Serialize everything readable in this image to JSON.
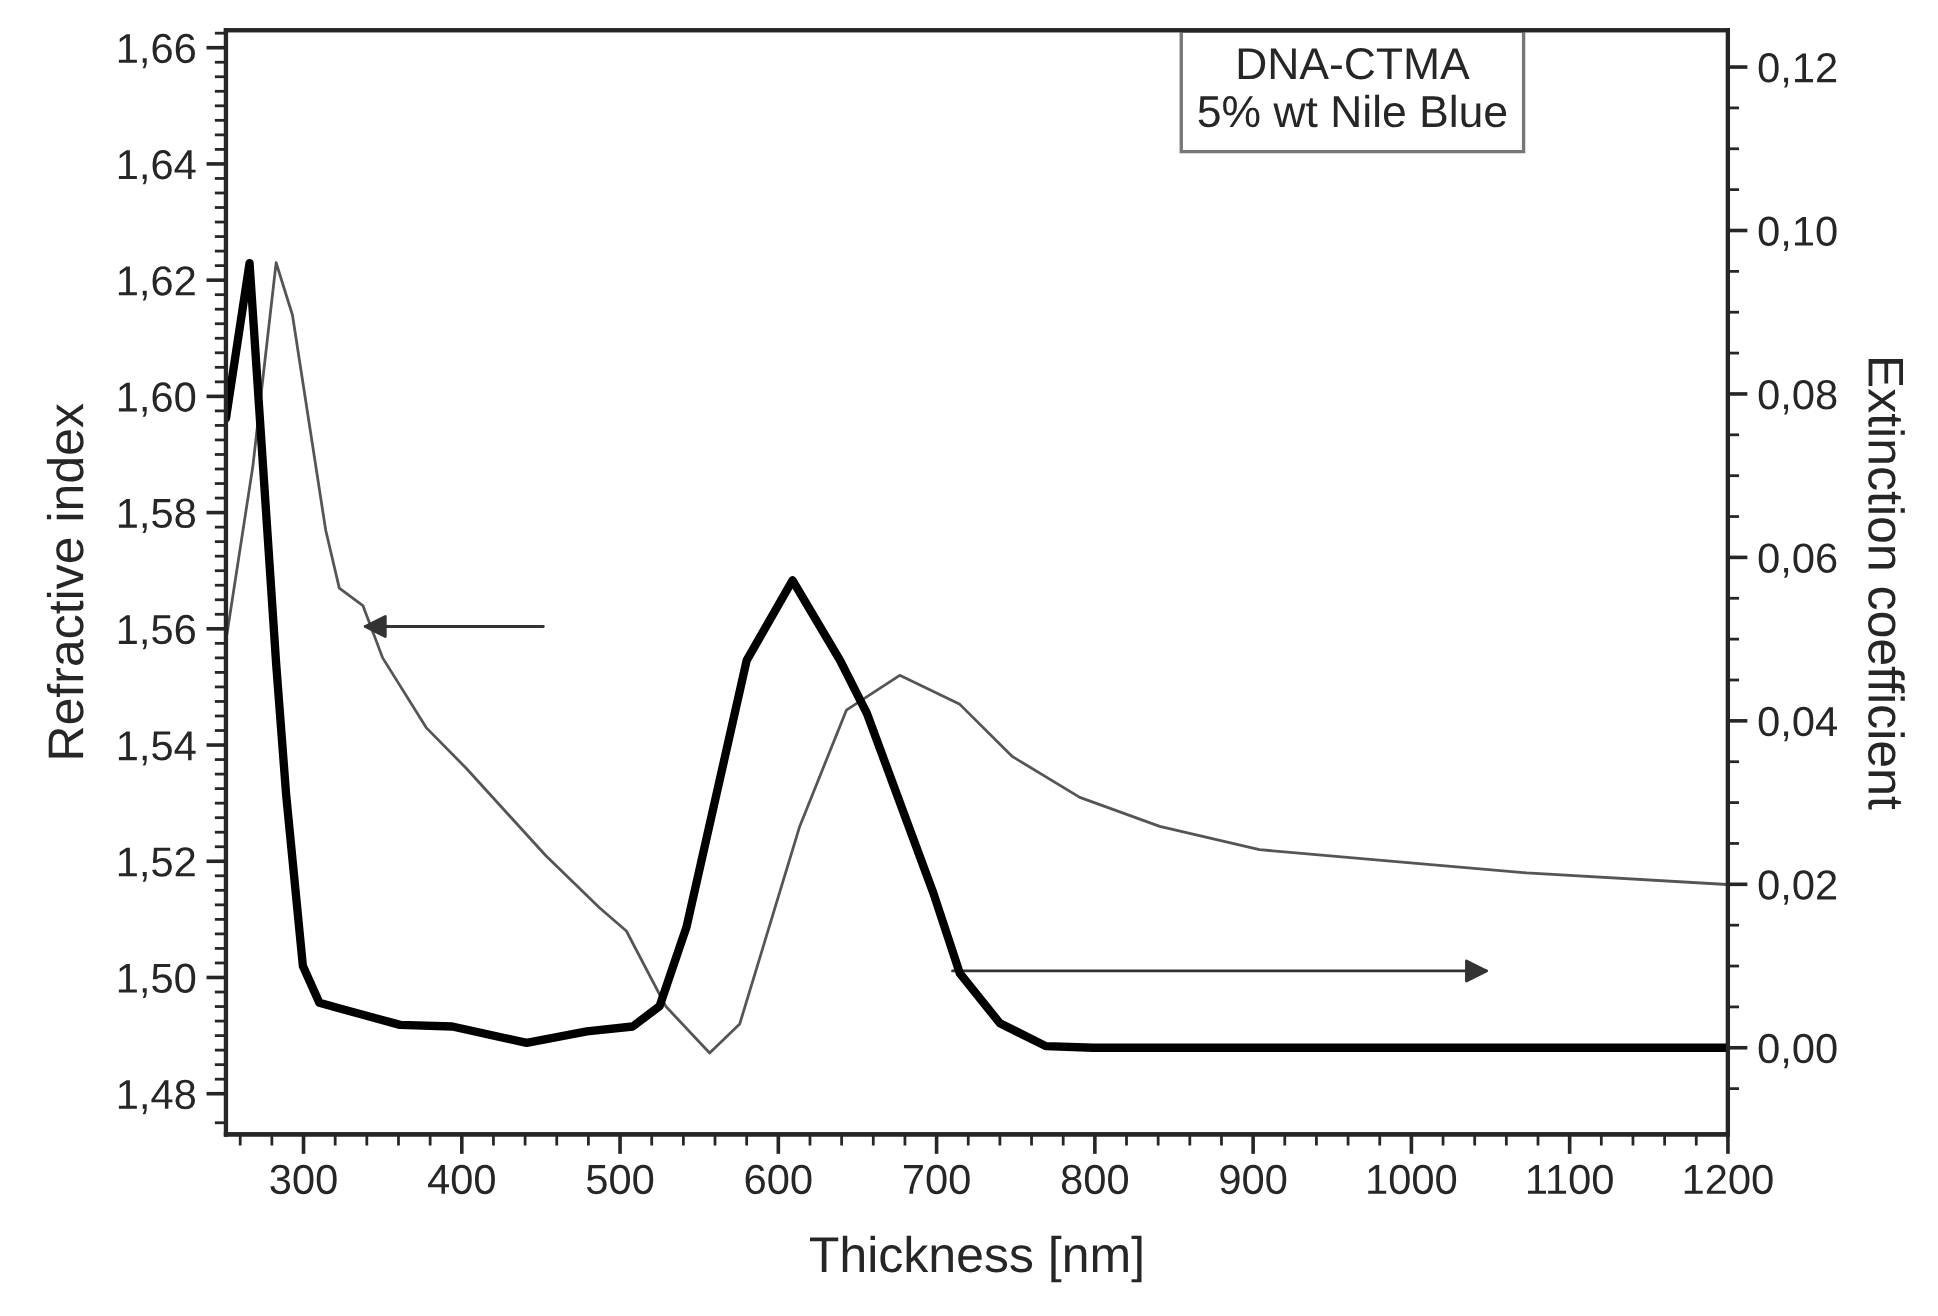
{
  "chart_data": {
    "type": "line",
    "xlabel": "Thickness [nm]",
    "ylabel": "Refractive index",
    "y2label": "Extinction coefficient",
    "annotations": [
      "DNA-CTMA\n5% wt Nile Blue"
    ],
    "xlim": [
      251,
      1200
    ],
    "ylim": [
      1.473,
      1.663
    ],
    "y2lim": [
      -0.0106,
      0.1245
    ],
    "xticks": [
      {
        "value": 260,
        "label": null
      },
      {
        "value": 280,
        "label": null
      },
      300,
      {
        "value": 320,
        "label": null
      },
      {
        "value": 340,
        "label": null
      },
      {
        "value": 360,
        "label": null
      },
      {
        "value": 380,
        "label": null
      },
      400,
      {
        "value": 420,
        "label": null
      },
      {
        "value": 440,
        "label": null
      },
      {
        "value": 460,
        "label": null
      },
      {
        "value": 480,
        "label": null
      },
      500,
      {
        "value": 520,
        "label": null
      },
      {
        "value": 540,
        "label": null
      },
      {
        "value": 560,
        "label": null
      },
      {
        "value": 580,
        "label": null
      },
      600,
      {
        "value": 620,
        "label": null
      },
      {
        "value": 640,
        "label": null
      },
      {
        "value": 660,
        "label": null
      },
      {
        "value": 680,
        "label": null
      },
      700,
      {
        "value": 720,
        "label": null
      },
      {
        "value": 740,
        "label": null
      },
      {
        "value": 760,
        "label": null
      },
      {
        "value": 780,
        "label": null
      },
      800,
      {
        "value": 820,
        "label": null
      },
      {
        "value": 840,
        "label": null
      },
      {
        "value": 860,
        "label": null
      },
      {
        "value": 880,
        "label": null
      },
      900,
      {
        "value": 920,
        "label": null
      },
      {
        "value": 940,
        "label": null
      },
      {
        "value": 960,
        "label": null
      },
      {
        "value": 980,
        "label": null
      },
      1000,
      {
        "value": 1020,
        "label": null
      },
      {
        "value": 1040,
        "label": null
      },
      {
        "value": 1060,
        "label": null
      },
      {
        "value": 1080,
        "label": null
      },
      1100,
      {
        "value": 1120,
        "label": null
      },
      {
        "value": 1140,
        "label": null
      },
      {
        "value": 1160,
        "label": null
      },
      {
        "value": 1180,
        "label": null
      },
      1200
    ],
    "yticks": [
      {
        "value": 1.48,
        "label": "1,48"
      },
      {
        "value": 1.5,
        "label": "1,50"
      },
      {
        "value": 1.52,
        "label": "1,52"
      },
      {
        "value": 1.54,
        "label": "1,54"
      },
      {
        "value": 1.56,
        "label": "1,56"
      },
      {
        "value": 1.58,
        "label": "1,58"
      },
      {
        "value": 1.6,
        "label": "1,60"
      },
      {
        "value": 1.62,
        "label": "1,62"
      },
      {
        "value": 1.64,
        "label": "1,64"
      },
      {
        "value": 1.66,
        "label": "1,66"
      },
      {
        "value": 1.475,
        "label": null
      },
      {
        "value": 1.4825,
        "label": null
      },
      {
        "value": 1.485,
        "label": null
      },
      {
        "value": 1.4875,
        "label": null
      },
      {
        "value": 1.49,
        "label": null
      },
      {
        "value": 1.4925,
        "label": null
      },
      {
        "value": 1.495,
        "label": null
      },
      {
        "value": 1.4975,
        "label": null
      },
      {
        "value": 1.5025,
        "label": null
      },
      {
        "value": 1.505,
        "label": null
      },
      {
        "value": 1.5075,
        "label": null
      },
      {
        "value": 1.51,
        "label": null
      },
      {
        "value": 1.5125,
        "label": null
      },
      {
        "value": 1.515,
        "label": null
      },
      {
        "value": 1.5175,
        "label": null
      },
      {
        "value": 1.5225,
        "label": null
      },
      {
        "value": 1.525,
        "label": null
      },
      {
        "value": 1.5275,
        "label": null
      },
      {
        "value": 1.53,
        "label": null
      },
      {
        "value": 1.5325,
        "label": null
      },
      {
        "value": 1.535,
        "label": null
      },
      {
        "value": 1.5375,
        "label": null
      },
      {
        "value": 1.5425,
        "label": null
      },
      {
        "value": 1.545,
        "label": null
      },
      {
        "value": 1.5475,
        "label": null
      },
      {
        "value": 1.55,
        "label": null
      },
      {
        "value": 1.5525,
        "label": null
      },
      {
        "value": 1.555,
        "label": null
      },
      {
        "value": 1.5575,
        "label": null
      },
      {
        "value": 1.5625,
        "label": null
      },
      {
        "value": 1.565,
        "label": null
      },
      {
        "value": 1.5675,
        "label": null
      },
      {
        "value": 1.57,
        "label": null
      },
      {
        "value": 1.5725,
        "label": null
      },
      {
        "value": 1.575,
        "label": null
      },
      {
        "value": 1.5775,
        "label": null
      },
      {
        "value": 1.5825,
        "label": null
      },
      {
        "value": 1.585,
        "label": null
      },
      {
        "value": 1.5875,
        "label": null
      },
      {
        "value": 1.59,
        "label": null
      },
      {
        "value": 1.5925,
        "label": null
      },
      {
        "value": 1.595,
        "label": null
      },
      {
        "value": 1.5975,
        "label": null
      },
      {
        "value": 1.6025,
        "label": null
      },
      {
        "value": 1.605,
        "label": null
      },
      {
        "value": 1.6075,
        "label": null
      },
      {
        "value": 1.61,
        "label": null
      },
      {
        "value": 1.6125,
        "label": null
      },
      {
        "value": 1.615,
        "label": null
      },
      {
        "value": 1.6175,
        "label": null
      },
      {
        "value": 1.6225,
        "label": null
      },
      {
        "value": 1.625,
        "label": null
      },
      {
        "value": 1.6275,
        "label": null
      },
      {
        "value": 1.63,
        "label": null
      },
      {
        "value": 1.6325,
        "label": null
      },
      {
        "value": 1.635,
        "label": null
      },
      {
        "value": 1.6375,
        "label": null
      },
      {
        "value": 1.6425,
        "label": null
      },
      {
        "value": 1.645,
        "label": null
      },
      {
        "value": 1.6475,
        "label": null
      },
      {
        "value": 1.65,
        "label": null
      },
      {
        "value": 1.6525,
        "label": null
      },
      {
        "value": 1.655,
        "label": null
      },
      {
        "value": 1.6575,
        "label": null
      },
      {
        "value": 1.6625,
        "label": null
      }
    ],
    "y2ticks": [
      {
        "value": 0.0,
        "label": "0,00"
      },
      {
        "value": 0.02,
        "label": "0,02"
      },
      {
        "value": 0.04,
        "label": "0,04"
      },
      {
        "value": 0.06,
        "label": "0,06"
      },
      {
        "value": 0.08,
        "label": "0,08"
      },
      {
        "value": 0.1,
        "label": "0,10"
      },
      {
        "value": 0.12,
        "label": "0,12"
      },
      {
        "value": -0.005,
        "label": null
      },
      {
        "value": 0.005,
        "label": null
      },
      {
        "value": 0.01,
        "label": null
      },
      {
        "value": 0.015,
        "label": null
      },
      {
        "value": 0.025,
        "label": null
      },
      {
        "value": 0.03,
        "label": null
      },
      {
        "value": 0.035,
        "label": null
      },
      {
        "value": 0.045,
        "label": null
      },
      {
        "value": 0.05,
        "label": null
      },
      {
        "value": 0.055,
        "label": null
      },
      {
        "value": 0.065,
        "label": null
      },
      {
        "value": 0.07,
        "label": null
      },
      {
        "value": 0.075,
        "label": null
      },
      {
        "value": 0.085,
        "label": null
      },
      {
        "value": 0.09,
        "label": null
      },
      {
        "value": 0.095,
        "label": null
      },
      {
        "value": 0.105,
        "label": null
      },
      {
        "value": 0.11,
        "label": null
      },
      {
        "value": 0.115,
        "label": null
      }
    ],
    "grid": false,
    "line_style": "solid",
    "series": [
      {
        "color": "#555555",
        "x": [
          251,
          268,
          282.7,
          293,
          314,
          322.6,
          337.5,
          350,
          377.5,
          402.8,
          453,
          487,
          504,
          529,
          556.6,
          575.6,
          613.5,
          643,
          676.7,
          714.7,
          748,
          790.5,
          841,
          904,
          988.5,
          1072.8,
          1199.5
        ],
        "values": [
          1.558,
          1.588,
          1.623,
          1.614,
          1.577,
          1.567,
          1.564,
          1.555,
          1.543,
          1.536,
          1.521,
          1.512,
          1.508,
          1.495,
          1.487,
          1.492,
          1.526,
          1.546,
          1.552,
          1.547,
          1.538,
          1.531,
          1.526,
          1.522,
          1.52,
          1.518,
          1.516
        ]
      },
      {
        "color": "#000000",
        "axis": "y2",
        "x": [
          251,
          265.9,
          282.7,
          289,
          299.6,
          310,
          327,
          361,
          394,
          441,
          479,
          508,
          525,
          542,
          563,
          580,
          609,
          639,
          656,
          698,
          714.7,
          740,
          769,
          799,
          1200
        ],
        "values": [
          0.077,
          0.096,
          0.047,
          0.031,
          0.01,
          0.0055,
          0.0046,
          0.0028,
          0.0026,
          0.0006,
          0.002,
          0.0026,
          0.0051,
          0.0148,
          0.0328,
          0.0474,
          0.0572,
          0.0474,
          0.0409,
          0.0189,
          0.0091,
          0.003,
          0.0002,
          0.0,
          0.0
        ]
      }
    ]
  }
}
